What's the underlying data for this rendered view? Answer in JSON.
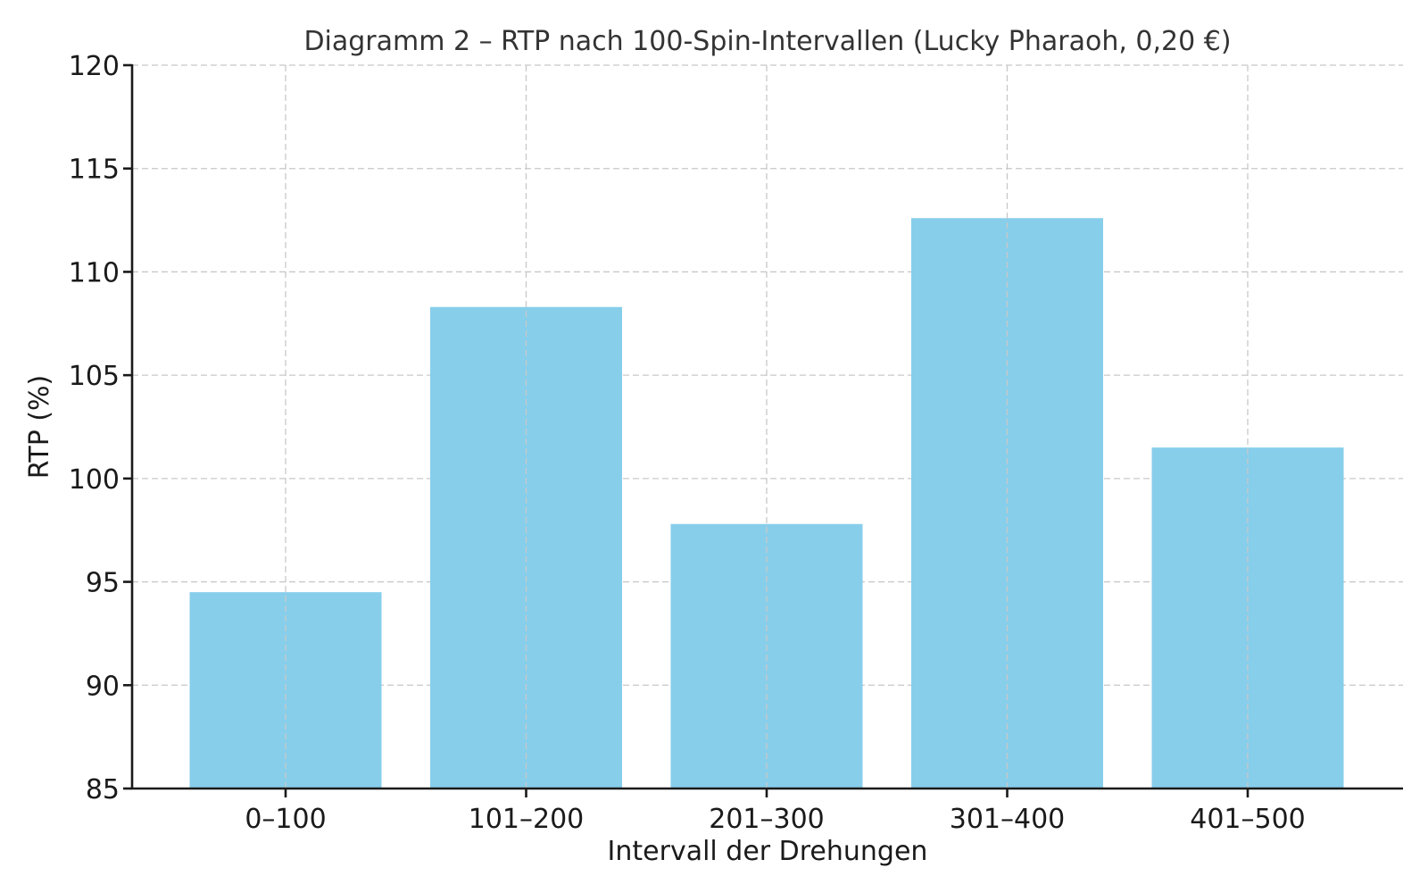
{
  "chart_data": {
    "type": "bar",
    "title": "Diagramm 2 – RTP nach 100-Spin-Intervallen (Lucky Pharaoh, 0,20 €)",
    "xlabel": "Intervall der Drehungen",
    "ylabel": "RTP (%)",
    "categories": [
      "0–100",
      "101–200",
      "201–300",
      "301–400",
      "401–500"
    ],
    "values": [
      94.5,
      108.3,
      97.8,
      112.6,
      101.5
    ],
    "ylim": [
      85,
      120
    ],
    "yticks": [
      85,
      90,
      95,
      100,
      105,
      110,
      115,
      120
    ],
    "grid": true,
    "grid_style": "dashed",
    "legend": null,
    "bar_color": "#87ceeb"
  }
}
